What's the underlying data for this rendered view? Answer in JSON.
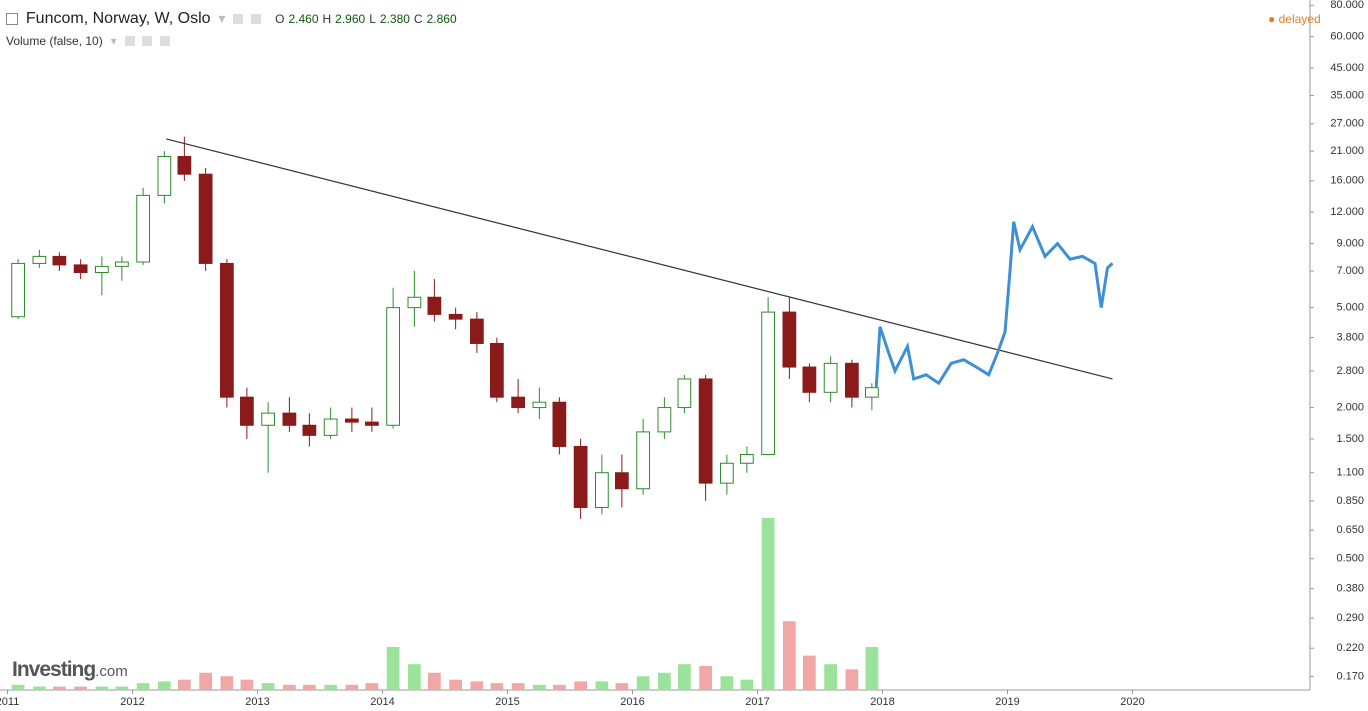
{
  "header": {
    "title": "Funcom, Norway, W, Oslo",
    "ohlc": [
      [
        "O",
        "2.460"
      ],
      [
        "H",
        "2.960"
      ],
      [
        "L",
        "2.380"
      ],
      [
        "C",
        "2.860"
      ]
    ],
    "volume_label": "Volume (false, 10)",
    "status": "delayed",
    "logo": "Investing",
    "logo_suffix": ".com"
  },
  "chart_data": {
    "type": "candlestick",
    "log_scale": true,
    "grid": false,
    "xlim": [
      2010.94,
      2021.42
    ],
    "xticks": [
      2011,
      2012,
      2013,
      2014,
      2015,
      2016,
      2017,
      2018,
      2019,
      2020
    ],
    "ylim": [
      0.15,
      84
    ],
    "yticks": [
      {
        "value": 0.17,
        "label": "0.170"
      },
      {
        "value": 0.22,
        "label": "0.220"
      },
      {
        "value": 0.29,
        "label": "0.290"
      },
      {
        "value": 0.38,
        "label": "0.380"
      },
      {
        "value": 0.5,
        "label": "0.500"
      },
      {
        "value": 0.65,
        "label": "0.650"
      },
      {
        "value": 0.85,
        "label": "0.850"
      },
      {
        "value": 1.1,
        "label": "1.100"
      },
      {
        "value": 1.5,
        "label": "1.500"
      },
      {
        "value": 2,
        "label": "2.000"
      },
      {
        "value": 2.8,
        "label": "2.800"
      },
      {
        "value": 3.8,
        "label": "3.800"
      },
      {
        "value": 5,
        "label": "5.000"
      },
      {
        "value": 7,
        "label": "7.000"
      },
      {
        "value": 9,
        "label": "9.000"
      },
      {
        "value": 12,
        "label": "12.000"
      },
      {
        "value": 16,
        "label": "16.000"
      },
      {
        "value": 21,
        "label": "21.000"
      },
      {
        "value": 27,
        "label": "27.000"
      },
      {
        "value": 35,
        "label": "35.000"
      },
      {
        "value": 45,
        "label": "45.000"
      },
      {
        "value": 60,
        "label": "60.000"
      },
      {
        "value": 80,
        "label": "80.000"
      }
    ],
    "up_color": "#2e8b2e",
    "down_color": "#8b1a1a",
    "x": [
      2011.0,
      2011.17,
      2011.33,
      2011.5,
      2011.67,
      2011.83,
      2012.0,
      2012.17,
      2012.33,
      2012.5,
      2012.67,
      2012.83,
      2013.0,
      2013.17,
      2013.33,
      2013.5,
      2013.67,
      2013.83,
      2014.0,
      2014.17,
      2014.33,
      2014.5,
      2014.67,
      2014.83,
      2015.0,
      2015.17,
      2015.33,
      2015.5,
      2015.67,
      2015.83,
      2016.0,
      2016.17,
      2016.33,
      2016.5,
      2016.67,
      2016.83,
      2017.0,
      2017.17,
      2017.33,
      2017.5,
      2017.67,
      2017.83
    ],
    "open": [
      4.6,
      7.5,
      8.0,
      7.4,
      6.9,
      7.3,
      7.6,
      14.0,
      20.0,
      17.0,
      7.5,
      2.2,
      1.7,
      1.9,
      1.7,
      1.55,
      1.8,
      1.75,
      1.7,
      5.0,
      5.5,
      4.7,
      4.5,
      3.6,
      2.2,
      2.0,
      2.1,
      1.4,
      0.8,
      1.1,
      0.95,
      1.6,
      2.0,
      2.6,
      1.0,
      1.2,
      1.3,
      4.8,
      2.9,
      2.3,
      3.0,
      2.2
    ],
    "high": [
      7.8,
      8.5,
      8.3,
      7.8,
      8.0,
      8.0,
      15.0,
      21.0,
      24.0,
      18.0,
      7.8,
      2.4,
      2.1,
      2.2,
      1.9,
      2.0,
      2.0,
      2.0,
      6.0,
      7.0,
      6.5,
      5.0,
      4.8,
      3.8,
      2.6,
      2.4,
      2.2,
      1.5,
      1.3,
      1.3,
      1.8,
      2.2,
      2.7,
      2.7,
      1.3,
      1.4,
      5.5,
      5.5,
      3.0,
      3.2,
      3.1,
      2.5
    ],
    "low": [
      4.5,
      7.2,
      7.0,
      6.5,
      5.6,
      6.4,
      7.4,
      13.0,
      16.0,
      7.0,
      2.0,
      1.5,
      1.1,
      1.6,
      1.4,
      1.5,
      1.6,
      1.6,
      1.65,
      4.2,
      4.4,
      4.1,
      3.3,
      2.1,
      1.9,
      1.8,
      1.3,
      0.72,
      0.75,
      0.8,
      0.9,
      1.5,
      1.9,
      0.85,
      0.9,
      1.1,
      1.3,
      2.6,
      2.1,
      2.1,
      2.0,
      1.95
    ],
    "close": [
      7.5,
      8.0,
      7.4,
      6.9,
      7.3,
      7.6,
      14.0,
      20.0,
      17.0,
      7.5,
      2.2,
      1.7,
      1.9,
      1.7,
      1.55,
      1.8,
      1.75,
      1.7,
      5.0,
      5.5,
      4.7,
      4.5,
      3.6,
      2.2,
      2.0,
      2.1,
      1.4,
      0.8,
      1.1,
      0.95,
      1.6,
      2.0,
      2.6,
      1.0,
      1.2,
      1.3,
      4.8,
      2.9,
      2.3,
      3.0,
      2.2,
      2.4
    ],
    "volume": [
      3,
      2,
      2,
      2,
      2,
      2,
      4,
      5,
      6,
      10,
      8,
      6,
      4,
      3,
      3,
      3,
      3,
      4,
      25,
      15,
      10,
      6,
      5,
      4,
      4,
      3,
      3,
      5,
      5,
      4,
      8,
      10,
      15,
      14,
      8,
      6,
      100,
      40,
      20,
      15,
      12,
      25
    ],
    "volume_up_color": "#9be39b",
    "volume_down_color": "#f2a7a7",
    "projection": {
      "color": "#3f8fd6",
      "x": [
        2017.95,
        2017.98,
        2018.05,
        2018.1,
        2018.2,
        2018.25,
        2018.35,
        2018.45,
        2018.55,
        2018.65,
        2018.75,
        2018.85,
        2018.92,
        2018.98,
        2019.02,
        2019.05,
        2019.1,
        2019.2,
        2019.3,
        2019.4,
        2019.5,
        2019.6,
        2019.7,
        2019.75,
        2019.8,
        2019.84
      ],
      "values": [
        2.4,
        4.2,
        3.3,
        2.8,
        3.5,
        2.6,
        2.7,
        2.5,
        3.0,
        3.1,
        2.9,
        2.7,
        3.3,
        4.0,
        7.0,
        11.0,
        8.5,
        10.5,
        8.0,
        9.0,
        7.8,
        8.0,
        7.5,
        5.0,
        7.2,
        7.5
      ]
    },
    "trendline": {
      "color": "#333333",
      "x": [
        2012.27,
        2019.84
      ],
      "values": [
        23.5,
        2.6
      ]
    }
  }
}
